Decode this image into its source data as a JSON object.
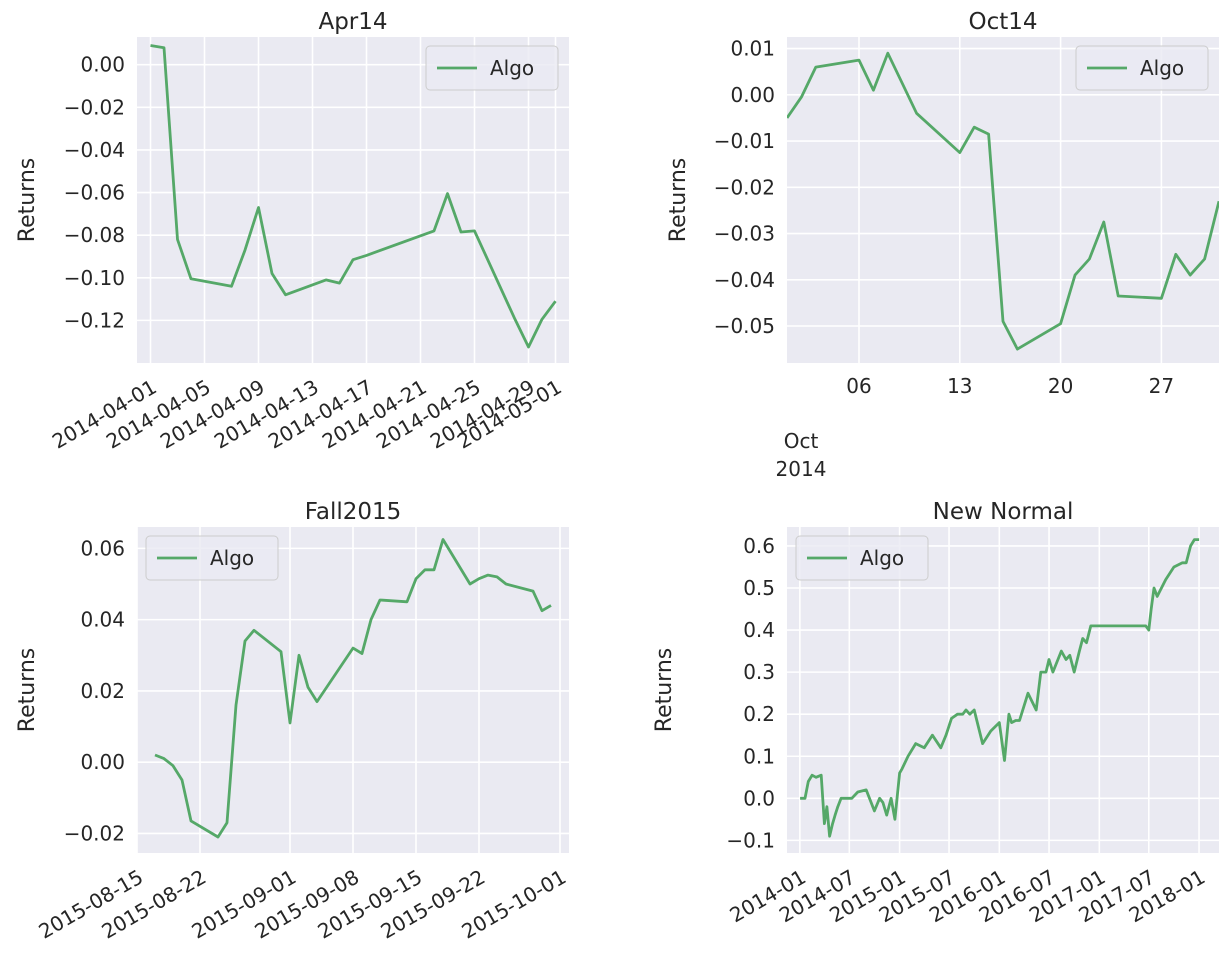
{
  "colors": {
    "plot_bg": "#eaeaf2",
    "grid": "#ffffff",
    "series": "#55a868"
  },
  "chart_data": [
    {
      "type": "line",
      "title": "Apr14",
      "ylabel": "Returns",
      "xlabel": "",
      "x_axis": "date",
      "xlim": [
        "2014-03-31",
        "2014-05-02"
      ],
      "ylim": [
        -0.14,
        0.013
      ],
      "yticks": [
        0.0,
        -0.02,
        -0.04,
        -0.06,
        -0.08,
        -0.1,
        -0.12
      ],
      "ytick_labels": [
        "0.00",
        "−0.02",
        "−0.04",
        "−0.06",
        "−0.08",
        "−0.10",
        "−0.12"
      ],
      "xticks": [
        "2014-04-01",
        "2014-04-05",
        "2014-04-09",
        "2014-04-13",
        "2014-04-17",
        "2014-04-21",
        "2014-04-25",
        "2014-04-29",
        "2014-05-01"
      ],
      "xtick_labels": [
        "2014-04-01",
        "2014-04-05",
        "2014-04-09",
        "2014-04-13",
        "2014-04-17",
        "2014-04-21",
        "2014-04-25",
        "2014-04-29",
        "2014-05-01"
      ],
      "grid": true,
      "legend": "top-right",
      "series": [
        {
          "name": "Algo",
          "x": [
            "2014-04-01",
            "2014-04-02",
            "2014-04-03",
            "2014-04-04",
            "2014-04-07",
            "2014-04-08",
            "2014-04-09",
            "2014-04-10",
            "2014-04-11",
            "2014-04-14",
            "2014-04-15",
            "2014-04-16",
            "2014-04-17",
            "2014-04-22",
            "2014-04-23",
            "2014-04-24",
            "2014-04-25",
            "2014-04-28",
            "2014-04-29",
            "2014-04-30",
            "2014-05-01"
          ],
          "y": [
            0.009,
            0.008,
            -0.082,
            -0.1005,
            -0.104,
            -0.087,
            -0.067,
            -0.098,
            -0.108,
            -0.101,
            -0.1025,
            -0.0915,
            -0.0895,
            -0.078,
            -0.0605,
            -0.0785,
            -0.078,
            -0.1195,
            -0.1325,
            -0.1195,
            -0.111
          ]
        }
      ]
    },
    {
      "type": "line",
      "title": "Oct14",
      "ylabel": "Returns",
      "xlabel": "",
      "x_axis": "date",
      "xlim": [
        "2014-10-01",
        "2014-10-31"
      ],
      "ylim": [
        -0.058,
        0.0125
      ],
      "yticks": [
        0.01,
        0.0,
        -0.01,
        -0.02,
        -0.03,
        -0.04,
        -0.05
      ],
      "ytick_labels": [
        "0.01",
        "0.00",
        "−0.01",
        "−0.02",
        "−0.03",
        "−0.04",
        "−0.05"
      ],
      "xticks": [
        "2014-10-06",
        "2014-10-13",
        "2014-10-20",
        "2014-10-27"
      ],
      "xtick_labels": [
        "06",
        "13",
        "20",
        "27"
      ],
      "xaxis_secondary_label": [
        "Oct",
        "2014"
      ],
      "grid": true,
      "legend": "top-right",
      "series": [
        {
          "name": "Algo",
          "x": [
            "2014-10-01",
            "2014-10-02",
            "2014-10-03",
            "2014-10-06",
            "2014-10-07",
            "2014-10-08",
            "2014-10-09",
            "2014-10-10",
            "2014-10-13",
            "2014-10-14",
            "2014-10-15",
            "2014-10-16",
            "2014-10-17",
            "2014-10-20",
            "2014-10-21",
            "2014-10-22",
            "2014-10-23",
            "2014-10-24",
            "2014-10-27",
            "2014-10-28",
            "2014-10-29",
            "2014-10-30",
            "2014-10-31"
          ],
          "y": [
            -0.005,
            -0.0005,
            0.006,
            0.0075,
            0.001,
            0.009,
            0.0025,
            -0.004,
            -0.0125,
            -0.007,
            -0.0085,
            -0.049,
            -0.055,
            -0.0495,
            -0.039,
            -0.0355,
            -0.0275,
            -0.0435,
            -0.044,
            -0.0345,
            -0.039,
            -0.0355,
            -0.023
          ]
        }
      ]
    },
    {
      "type": "line",
      "title": "Fall2015",
      "ylabel": "Returns",
      "xlabel": "",
      "x_axis": "date",
      "xlim": [
        "2015-08-15",
        "2015-10-02"
      ],
      "ylim": [
        -0.0255,
        0.066
      ],
      "yticks": [
        0.06,
        0.04,
        0.02,
        0.0,
        -0.02
      ],
      "ytick_labels": [
        "0.06",
        "0.04",
        "0.02",
        "0.00",
        "−0.02"
      ],
      "xticks": [
        "2015-08-15",
        "2015-08-22",
        "2015-09-01",
        "2015-09-08",
        "2015-09-15",
        "2015-09-22",
        "2015-10-01"
      ],
      "xtick_labels": [
        "2015-08-15",
        "2015-08-22",
        "2015-09-01",
        "2015-09-08",
        "2015-09-15",
        "2015-09-22",
        "2015-10-01"
      ],
      "grid": true,
      "legend": "top-left",
      "series": [
        {
          "name": "Algo",
          "x": [
            "2015-08-17",
            "2015-08-18",
            "2015-08-19",
            "2015-08-20",
            "2015-08-21",
            "2015-08-24",
            "2015-08-25",
            "2015-08-26",
            "2015-08-27",
            "2015-08-28",
            "2015-08-31",
            "2015-09-01",
            "2015-09-02",
            "2015-09-03",
            "2015-09-04",
            "2015-09-08",
            "2015-09-09",
            "2015-09-10",
            "2015-09-11",
            "2015-09-14",
            "2015-09-15",
            "2015-09-16",
            "2015-09-17",
            "2015-09-18",
            "2015-09-21",
            "2015-09-22",
            "2015-09-23",
            "2015-09-24",
            "2015-09-25",
            "2015-09-28",
            "2015-09-29",
            "2015-09-30"
          ],
          "y": [
            0.002,
            0.001,
            -0.001,
            -0.005,
            -0.0165,
            -0.021,
            -0.017,
            0.016,
            0.034,
            0.037,
            0.031,
            0.011,
            0.03,
            0.021,
            0.017,
            0.032,
            0.0305,
            0.04,
            0.0455,
            0.045,
            0.0515,
            0.054,
            0.054,
            0.0625,
            0.05,
            0.0515,
            0.0525,
            0.052,
            0.05,
            0.048,
            0.0425,
            0.044
          ]
        }
      ]
    },
    {
      "type": "line",
      "title": "New Normal",
      "ylabel": "Returns",
      "xlabel": "",
      "x_axis": "date",
      "xlim": [
        "2013-11-15",
        "2018-03-15"
      ],
      "ylim": [
        -0.13,
        0.645
      ],
      "yticks": [
        0.6,
        0.5,
        0.4,
        0.3,
        0.2,
        0.1,
        0.0,
        -0.1
      ],
      "ytick_labels": [
        "0.6",
        "0.5",
        "0.4",
        "0.3",
        "0.2",
        "0.1",
        "0.0",
        "−0.1"
      ],
      "xticks": [
        "2014-01-01",
        "2014-07-01",
        "2015-01-01",
        "2015-07-01",
        "2016-01-01",
        "2016-07-01",
        "2017-01-01",
        "2017-07-01",
        "2018-01-01"
      ],
      "xtick_labels": [
        "2014-01",
        "2014-07",
        "2015-01",
        "2015-07",
        "2016-01",
        "2016-07",
        "2017-01",
        "2017-07",
        "2018-01"
      ],
      "grid": true,
      "legend": "top-left",
      "series": [
        {
          "name": "Algo",
          "x": [
            "2014-01-02",
            "2014-01-20",
            "2014-02-01",
            "2014-02-15",
            "2014-03-01",
            "2014-03-20",
            "2014-04-01",
            "2014-04-10",
            "2014-04-20",
            "2014-05-01",
            "2014-05-10",
            "2014-05-20",
            "2014-06-01",
            "2014-06-20",
            "2014-07-10",
            "2014-08-01",
            "2014-09-01",
            "2014-10-01",
            "2014-10-20",
            "2014-11-01",
            "2014-11-15",
            "2014-12-01",
            "2014-12-15",
            "2015-01-01",
            "2015-01-10",
            "2015-02-01",
            "2015-03-01",
            "2015-04-01",
            "2015-05-01",
            "2015-06-01",
            "2015-06-20",
            "2015-07-10",
            "2015-08-01",
            "2015-08-20",
            "2015-09-01",
            "2015-09-15",
            "2015-10-01",
            "2015-11-01",
            "2015-12-01",
            "2016-01-01",
            "2016-01-20",
            "2016-02-05",
            "2016-02-15",
            "2016-03-01",
            "2016-03-15",
            "2016-04-15",
            "2016-05-15",
            "2016-06-01",
            "2016-06-20",
            "2016-07-01",
            "2016-07-15",
            "2016-08-15",
            "2016-09-01",
            "2016-09-15",
            "2016-10-01",
            "2016-10-20",
            "2016-11-01",
            "2016-11-15",
            "2016-12-01",
            "2016-12-20",
            "2017-01-01",
            "2017-01-10",
            "2017-02-01",
            "2017-04-01",
            "2017-06-01",
            "2017-06-20",
            "2017-07-01",
            "2017-07-10",
            "2017-07-20",
            "2017-08-01",
            "2017-09-01",
            "2017-10-01",
            "2017-11-01",
            "2017-11-15",
            "2017-12-01",
            "2017-12-15",
            "2018-01-01"
          ],
          "y": [
            0.0,
            0.0,
            0.04,
            0.055,
            0.05,
            0.055,
            -0.06,
            -0.02,
            -0.09,
            -0.06,
            -0.04,
            -0.02,
            0.0,
            0.0,
            0.0,
            0.015,
            0.02,
            -0.03,
            0.0,
            -0.01,
            -0.04,
            0.0,
            -0.05,
            0.06,
            0.07,
            0.1,
            0.13,
            0.12,
            0.15,
            0.12,
            0.15,
            0.19,
            0.2,
            0.2,
            0.21,
            0.2,
            0.21,
            0.13,
            0.16,
            0.18,
            0.09,
            0.2,
            0.18,
            0.185,
            0.185,
            0.25,
            0.21,
            0.3,
            0.3,
            0.33,
            0.3,
            0.35,
            0.33,
            0.34,
            0.3,
            0.35,
            0.38,
            0.37,
            0.41,
            0.41,
            0.41,
            0.41,
            0.41,
            0.41,
            0.41,
            0.41,
            0.4,
            0.45,
            0.5,
            0.48,
            0.52,
            0.55,
            0.56,
            0.56,
            0.6,
            0.615,
            0.615
          ]
        }
      ]
    }
  ]
}
